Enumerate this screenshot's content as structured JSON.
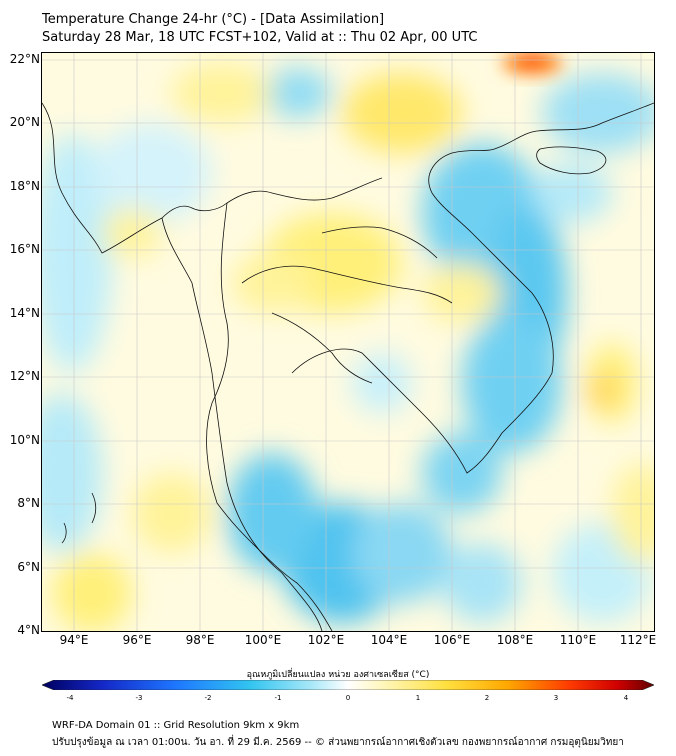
{
  "header": {
    "title_line1": "Temperature Change 24-hr (°C) - [Data Assimilation]",
    "title_line2": "Saturday 28 Mar, 18 UTC FCST+102, Valid at :: Thu 02 Apr, 00 UTC"
  },
  "map": {
    "lat_labels": [
      "22°N",
      "20°N",
      "18°N",
      "16°N",
      "14°N",
      "12°N",
      "10°N",
      "8°N",
      "6°N",
      "4°N"
    ],
    "lon_labels": [
      "94°E",
      "96°E",
      "98°E",
      "100°E",
      "102°E",
      "104°E",
      "106°E",
      "108°E",
      "110°E",
      "112°E"
    ],
    "lat_range": [
      4,
      22.2
    ],
    "lon_range": [
      93,
      112.4
    ],
    "gridlines": true
  },
  "colorbar": {
    "title": "อุณหภูมิเปลี่ยนแปลง หน่วย องศาเซลเซียส (°C)",
    "ticks": [
      "-4",
      "-3",
      "-2",
      "-1",
      "0",
      "1",
      "2",
      "3",
      "4"
    ],
    "range": [
      -4,
      4
    ],
    "colors": [
      "#0a0a80",
      "#1e3cff",
      "#1e8cff",
      "#38c8f0",
      "#b8ecf8",
      "#ffffff",
      "#fff5b0",
      "#ffe040",
      "#ffb000",
      "#ff5a00",
      "#e00000",
      "#780000"
    ]
  },
  "footer": {
    "line1": "WRF-DA Domain 01 :: Grid Resolution 9km x 9km",
    "line2": "ปรับปรุงข้อมูล ณ เวลา 01:00น. วัน อา. ที่ 29 มี.ค. 2569 -- © ส่วนพยากรณ์อากาศเชิงตัวเลข กองพยากรณ์อากาศ กรมอุตุนิยมวิทยา"
  }
}
